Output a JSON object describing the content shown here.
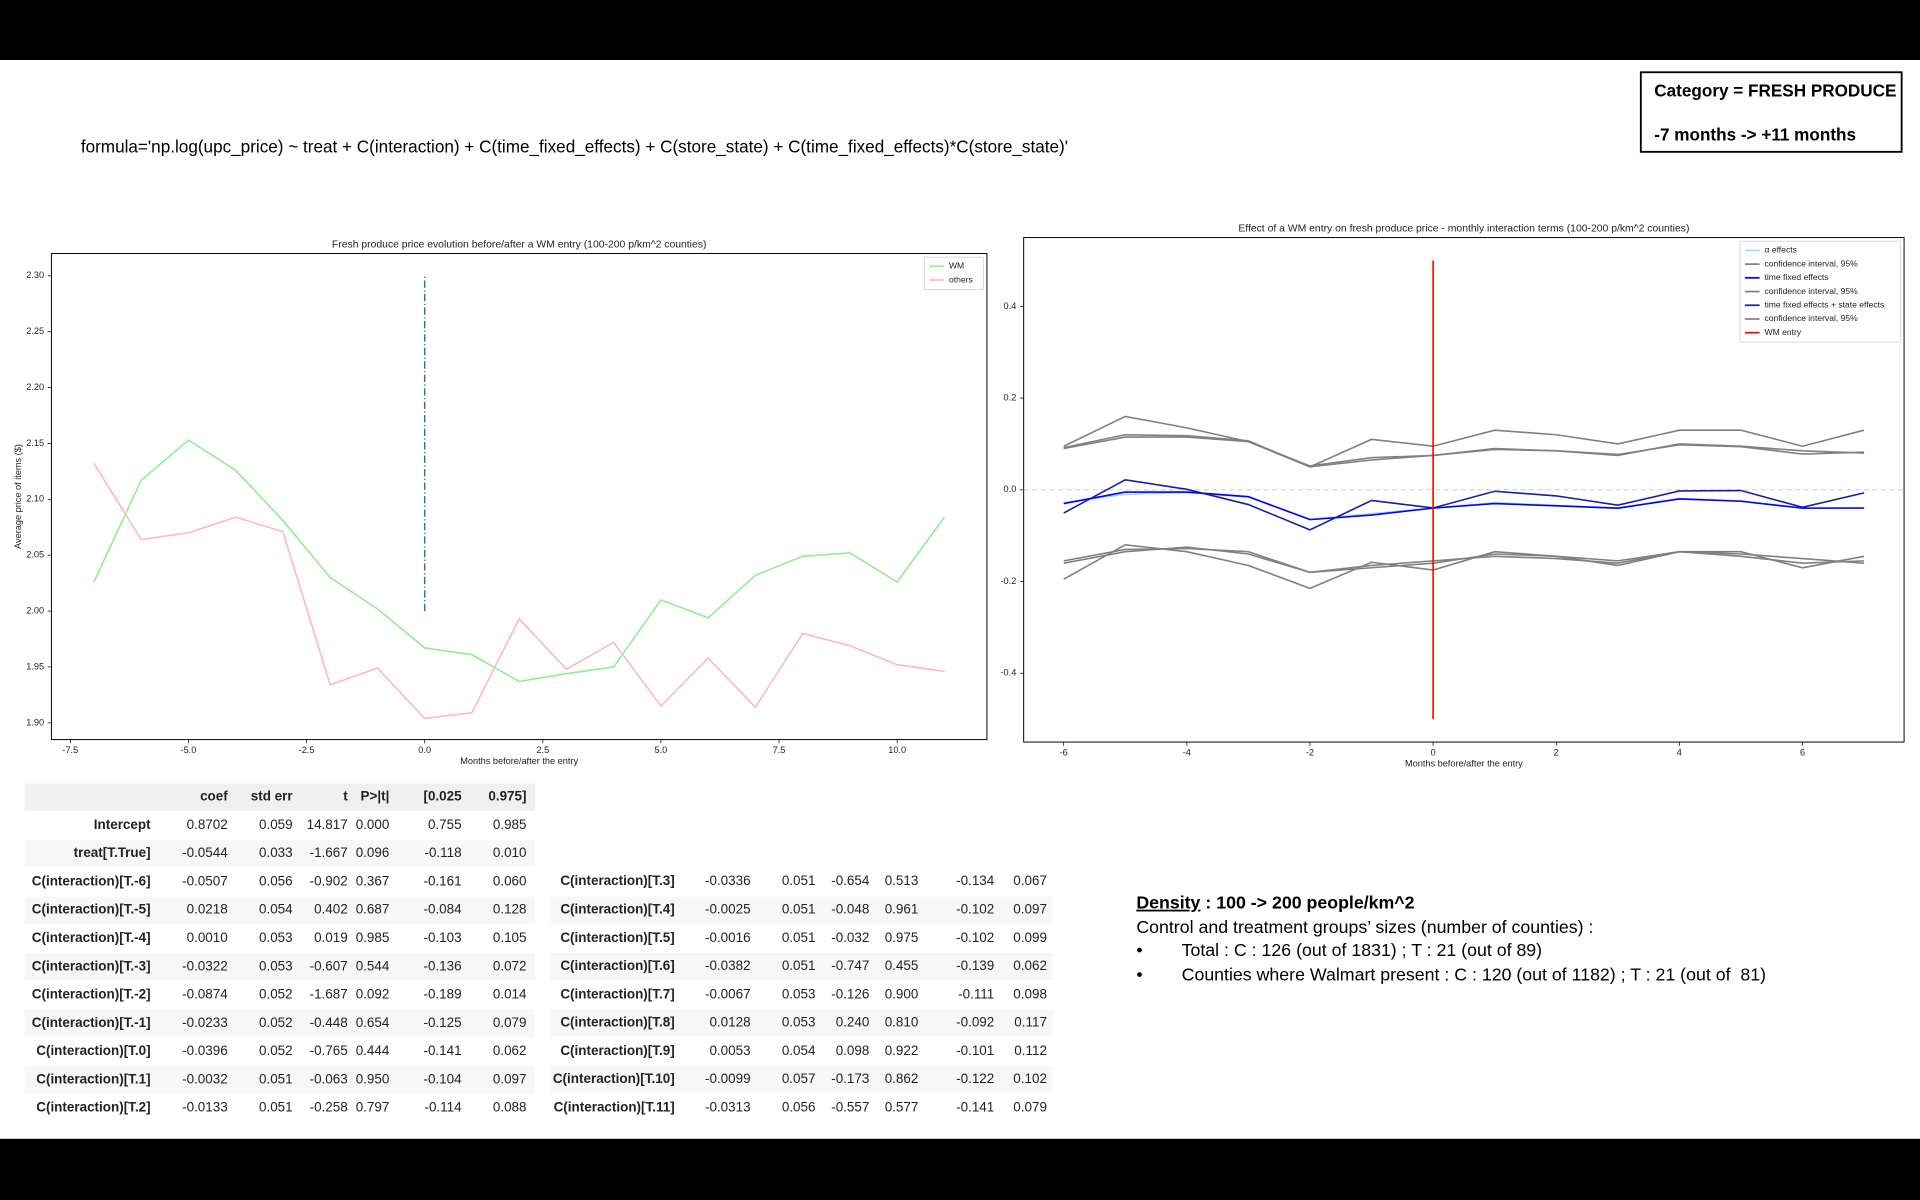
{
  "header": {
    "category": "Category = FRESH PRODUCE",
    "period": "-7 months -> +11 months"
  },
  "formula": "formula='np.log(upc_price) ~ treat + C(interaction) + C(time_fixed_effects) + C(store_state) + C(time_fixed_effects)*C(store_state)'",
  "chart_data": [
    {
      "type": "line",
      "title": "Fresh produce price evolution before/after a WM entry (100-200 p/km^2 counties)",
      "x_label": "Months before/after the entry",
      "y_label": "Average price of items ($)",
      "x": [
        -7,
        -6,
        -5,
        -4,
        -3,
        -2,
        -1,
        0,
        1,
        2,
        3,
        4,
        5,
        6,
        7,
        8,
        9,
        10,
        11
      ],
      "series": [
        {
          "name": "WM",
          "color": "#90ee90",
          "values": [
            2.026,
            2.117,
            2.153,
            2.126,
            2.081,
            2.03,
            2.002,
            1.967,
            1.961,
            1.937,
            1.944,
            1.95,
            2.01,
            1.994,
            2.032,
            2.049,
            2.052,
            2.026,
            2.084
          ]
        },
        {
          "name": "others",
          "color": "#ffb6c1",
          "values": [
            2.132,
            2.064,
            2.07,
            2.084,
            2.071,
            1.934,
            1.949,
            1.904,
            1.909,
            1.993,
            1.948,
            1.972,
            1.915,
            1.958,
            1.914,
            1.98,
            1.969,
            1.952,
            1.946
          ]
        }
      ],
      "vline": {
        "x": 0,
        "ymin": 2.0,
        "ymax": 2.3,
        "color": "#1f77b4"
      },
      "xlim": [
        -7.9,
        11.9
      ],
      "xticks": [
        -7.5,
        {
          "value": -5,
          "label": "-5.0"
        },
        -2.5,
        {
          "value": 0,
          "label": "0.0"
        },
        2.5,
        {
          "value": 5,
          "label": "5.0"
        },
        7.5,
        {
          "value": 10,
          "label": "10.0"
        }
      ],
      "ylim": [
        1.885,
        2.32
      ],
      "yticks": [
        {
          "value": 1.9,
          "label": "1.90"
        },
        1.95,
        {
          "value": 2.0,
          "label": "2.00"
        },
        2.05,
        {
          "value": 2.1,
          "label": "2.10"
        },
        2.15,
        {
          "value": 2.2,
          "label": "2.20"
        },
        2.25,
        {
          "value": 2.3,
          "label": "2.30"
        }
      ],
      "legend": "upper right"
    },
    {
      "type": "line",
      "title": "Effect of a WM entry on fresh produce price - monthly interaction terms (100-200 p/km^2 counties)",
      "x_label": "Months before/after the entry",
      "x": [
        -6,
        -5,
        -4,
        -3,
        -2,
        -1,
        0,
        1,
        2,
        3,
        4,
        5,
        6,
        7
      ],
      "series": [
        {
          "name": "α effects",
          "color": "#add8e6",
          "values": [
            -0.028,
            -0.01,
            -0.006,
            -0.016,
            -0.064,
            -0.052,
            -0.04,
            -0.028,
            -0.034,
            -0.04,
            -0.019,
            -0.024,
            -0.04,
            -0.039
          ]
        },
        {
          "name": "confidence interval, 95%",
          "color": "#808080",
          "upper": [
            0.09,
            0.115,
            0.115,
            0.105,
            0.052,
            0.07,
            0.075,
            0.09,
            0.085,
            0.075,
            0.1,
            0.095,
            0.085,
            0.08
          ],
          "lower": [
            -0.16,
            -0.135,
            -0.125,
            -0.14,
            -0.18,
            -0.17,
            -0.16,
            -0.14,
            -0.145,
            -0.155,
            -0.135,
            -0.14,
            -0.15,
            -0.16
          ]
        },
        {
          "name": "time fixed effects",
          "color": "#0000ff",
          "values": [
            -0.03,
            -0.005,
            -0.005,
            -0.015,
            -0.065,
            -0.055,
            -0.04,
            -0.03,
            -0.035,
            -0.04,
            -0.02,
            -0.025,
            -0.04,
            -0.04
          ]
        },
        {
          "name": "confidence interval, 95%",
          "color": "#808080",
          "upper": [
            0.092,
            0.12,
            0.118,
            0.107,
            0.05,
            0.065,
            0.075,
            0.088,
            0.085,
            0.077,
            0.098,
            0.094,
            0.078,
            0.082
          ],
          "lower": [
            -0.155,
            -0.13,
            -0.128,
            -0.135,
            -0.18,
            -0.165,
            -0.155,
            -0.145,
            -0.15,
            -0.16,
            -0.135,
            -0.145,
            -0.16,
            -0.155
          ]
        },
        {
          "name": "time fixed effects + state effects",
          "color": "#1c1ca8",
          "values": [
            -0.0507,
            0.0218,
            0.001,
            -0.0322,
            -0.0874,
            -0.0233,
            -0.0396,
            -0.0032,
            -0.0133,
            -0.0336,
            -0.0025,
            -0.0016,
            -0.0382,
            -0.0067
          ]
        },
        {
          "name": "confidence interval, 95%",
          "color": "#808080",
          "upper": [
            0.095,
            0.16,
            0.135,
            0.105,
            0.05,
            0.11,
            0.095,
            0.13,
            0.12,
            0.1,
            0.13,
            0.13,
            0.095,
            0.13
          ],
          "lower": [
            -0.195,
            -0.12,
            -0.135,
            -0.165,
            -0.215,
            -0.158,
            -0.175,
            -0.135,
            -0.145,
            -0.165,
            -0.135,
            -0.135,
            -0.17,
            -0.145
          ]
        },
        {
          "name": "WM entry",
          "color": "#ff0000",
          "at_x": 0,
          "ymin": -0.5,
          "ymax": 0.5
        }
      ],
      "hline": {
        "y": 0,
        "color": "#cccccc"
      },
      "xlim": [
        -6.65,
        7.65
      ],
      "xticks": [
        -6,
        -4,
        -2,
        0,
        2,
        4,
        6
      ],
      "ylim": [
        -0.55,
        0.55
      ],
      "yticks": [
        -0.4,
        -0.2,
        {
          "value": 0,
          "label": "0.0"
        },
        0.2,
        0.4
      ],
      "legend": "upper right"
    }
  ],
  "tables": [
    {
      "columns": [
        "coef",
        "std err",
        "t",
        "P>|t|",
        "[0.025",
        "0.975]"
      ],
      "rows": [
        {
          "label": "Intercept",
          "cells": [
            "0.8702",
            "0.059",
            "14.817",
            "0.000",
            "0.755",
            "0.985"
          ]
        },
        {
          "label": "treat[T.True]",
          "cells": [
            "-0.0544",
            "0.033",
            "-1.667",
            "0.096",
            "-0.118",
            "0.010"
          ]
        },
        {
          "label": "C(interaction)[T.-6]",
          "cells": [
            "-0.0507",
            "0.056",
            "-0.902",
            "0.367",
            "-0.161",
            "0.060"
          ]
        },
        {
          "label": "C(interaction)[T.-5]",
          "cells": [
            "0.0218",
            "0.054",
            "0.402",
            "0.687",
            "-0.084",
            "0.128"
          ]
        },
        {
          "label": "C(interaction)[T.-4]",
          "cells": [
            "0.0010",
            "0.053",
            "0.019",
            "0.985",
            "-0.103",
            "0.105"
          ]
        },
        {
          "label": "C(interaction)[T.-3]",
          "cells": [
            "-0.0322",
            "0.053",
            "-0.607",
            "0.544",
            "-0.136",
            "0.072"
          ]
        },
        {
          "label": "C(interaction)[T.-2]",
          "cells": [
            "-0.0874",
            "0.052",
            "-1.687",
            "0.092",
            "-0.189",
            "0.014"
          ]
        },
        {
          "label": "C(interaction)[T.-1]",
          "cells": [
            "-0.0233",
            "0.052",
            "-0.448",
            "0.654",
            "-0.125",
            "0.079"
          ]
        },
        {
          "label": "C(interaction)[T.0]",
          "cells": [
            "-0.0396",
            "0.052",
            "-0.765",
            "0.444",
            "-0.141",
            "0.062"
          ]
        },
        {
          "label": "C(interaction)[T.1]",
          "cells": [
            "-0.0032",
            "0.051",
            "-0.063",
            "0.950",
            "-0.104",
            "0.097"
          ]
        },
        {
          "label": "C(interaction)[T.2]",
          "cells": [
            "-0.0133",
            "0.051",
            "-0.258",
            "0.797",
            "-0.114",
            "0.088"
          ]
        }
      ]
    },
    {
      "rows": [
        {
          "label": "C(interaction)[T.3]",
          "cells": [
            "-0.0336",
            "0.051",
            "-0.654",
            "0.513",
            "-0.134",
            "0.067"
          ]
        },
        {
          "label": "C(interaction)[T.4]",
          "cells": [
            "-0.0025",
            "0.051",
            "-0.048",
            "0.961",
            "-0.102",
            "0.097"
          ]
        },
        {
          "label": "C(interaction)[T.5]",
          "cells": [
            "-0.0016",
            "0.051",
            "-0.032",
            "0.975",
            "-0.102",
            "0.099"
          ]
        },
        {
          "label": "C(interaction)[T.6]",
          "cells": [
            "-0.0382",
            "0.051",
            "-0.747",
            "0.455",
            "-0.139",
            "0.062"
          ]
        },
        {
          "label": "C(interaction)[T.7]",
          "cells": [
            "-0.0067",
            "0.053",
            "-0.126",
            "0.900",
            "-0.111",
            "0.098"
          ]
        },
        {
          "label": "C(interaction)[T.8]",
          "cells": [
            "0.0128",
            "0.053",
            "0.240",
            "0.810",
            "-0.092",
            "0.117"
          ]
        },
        {
          "label": "C(interaction)[T.9]",
          "cells": [
            "0.0053",
            "0.054",
            "0.098",
            "0.922",
            "-0.101",
            "0.112"
          ]
        },
        {
          "label": "C(interaction)[T.10]",
          "cells": [
            "-0.0099",
            "0.057",
            "-0.173",
            "0.862",
            "-0.122",
            "0.102"
          ]
        },
        {
          "label": "C(interaction)[T.11]",
          "cells": [
            "-0.0313",
            "0.056",
            "-0.557",
            "0.577",
            "-0.141",
            "0.079"
          ]
        }
      ]
    }
  ],
  "notes": {
    "density_label": "Density",
    "density_value": " : 100 -> 200 people/km^2",
    "groups_intro": "Control and treatment groups’ sizes (number of counties) :",
    "bullets": [
      "Total : C : 126 (out of 1831) ; T : 21 (out of 89)",
      "Counties where Walmart present : C : 120 (out of 1182) ; T : 21 (out of  81)"
    ]
  }
}
